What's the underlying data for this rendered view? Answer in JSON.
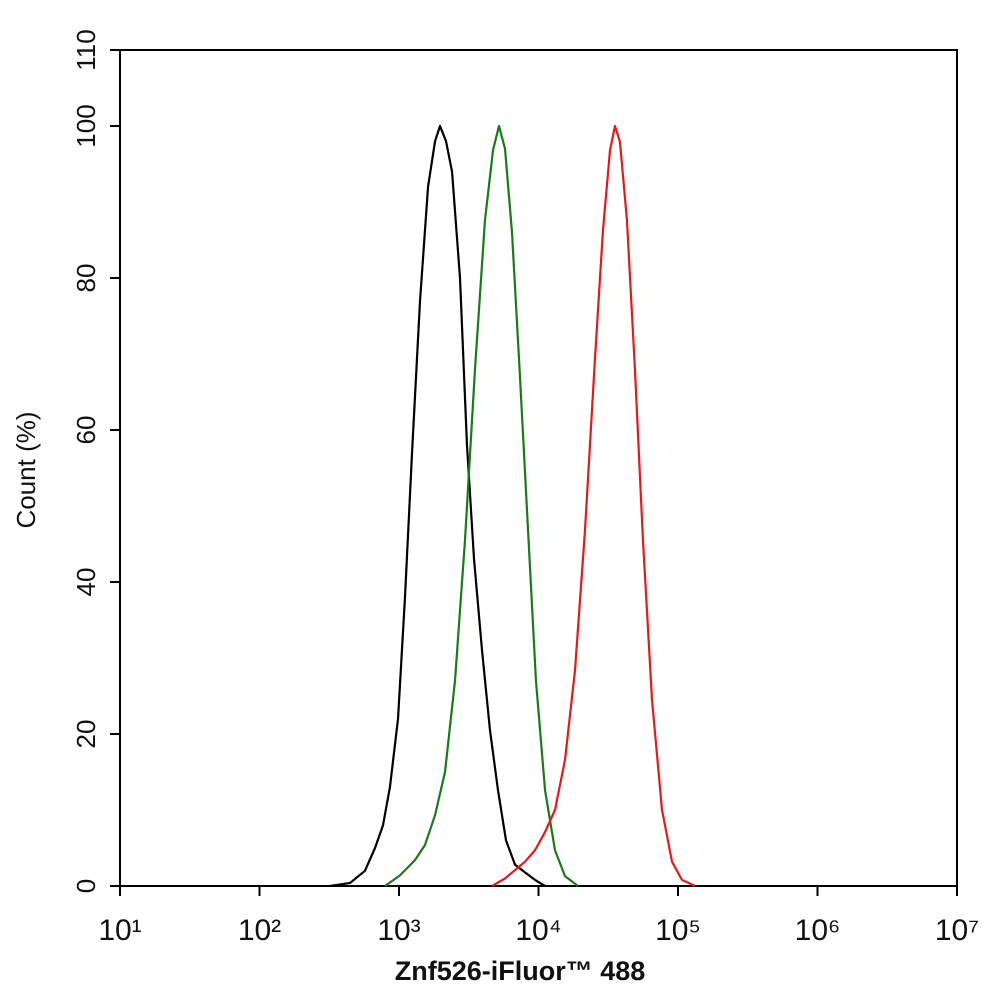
{
  "chart_data": {
    "type": "line",
    "xlabel": "Znf526-iFluor™ 488",
    "ylabel": "Count  (%)",
    "xscale": "log",
    "xlim": [
      10,
      10000000
    ],
    "xticks": [
      {
        "value": 10,
        "label": "10¹"
      },
      {
        "value": 100,
        "label": "10²"
      },
      {
        "value": 1000,
        "label": "10³"
      },
      {
        "value": 10000,
        "label": "10⁴"
      },
      {
        "value": 100000,
        "label": "10⁵"
      },
      {
        "value": 1000000,
        "label": "10⁶"
      },
      {
        "value": 10000000,
        "label": "10⁷"
      }
    ],
    "ylim": [
      0,
      110
    ],
    "yticks": [
      0,
      20,
      40,
      60,
      80,
      100,
      110
    ],
    "series": [
      {
        "color": "#000000",
        "x": [
          320,
          446,
          570,
          673,
          768,
          861,
          984,
          1104,
          1240,
          1415,
          1615,
          1813,
          1968,
          2173,
          2400,
          2737,
          3071,
          3450,
          3937,
          4490,
          5125,
          5850,
          6790,
          8000,
          9440,
          11140
        ],
        "values": [
          0,
          0.4,
          2,
          5,
          8,
          13,
          22,
          38,
          57,
          77,
          92,
          98,
          100,
          98,
          94,
          80,
          58,
          43,
          31,
          20.5,
          12.6,
          6,
          2.8,
          1.8,
          0.8,
          0
        ]
      },
      {
        "color": "#1a7a1a",
        "x": [
          794,
          1016,
          1302,
          1536,
          1812,
          2137,
          2520,
          2972,
          3506,
          4133,
          4718,
          5210,
          5754,
          6457,
          7367,
          8405,
          9590,
          11140,
          13130,
          15490,
          19190
        ],
        "values": [
          0,
          1.4,
          3.4,
          5.4,
          9.3,
          15,
          27,
          45.5,
          68,
          87.6,
          96.8,
          100,
          97,
          86,
          67,
          47,
          27,
          12.6,
          4.7,
          1.3,
          0
        ]
      },
      {
        "color": "#e41a1a",
        "x": [
          4645,
          5754,
          6790,
          8002,
          9440,
          11140,
          13130,
          15490,
          18270,
          21540,
          25420,
          28990,
          32550,
          35330,
          38370,
          43060,
          49160,
          56090,
          65120,
          76800,
          90600,
          106800,
          132500
        ],
        "values": [
          0,
          1,
          2.1,
          3.2,
          4.7,
          7.1,
          10,
          16.6,
          28.4,
          46.8,
          69.5,
          86.3,
          96.8,
          100,
          97.9,
          87.6,
          67.9,
          45.5,
          24.5,
          10,
          3.2,
          0.8,
          0
        ]
      }
    ]
  }
}
